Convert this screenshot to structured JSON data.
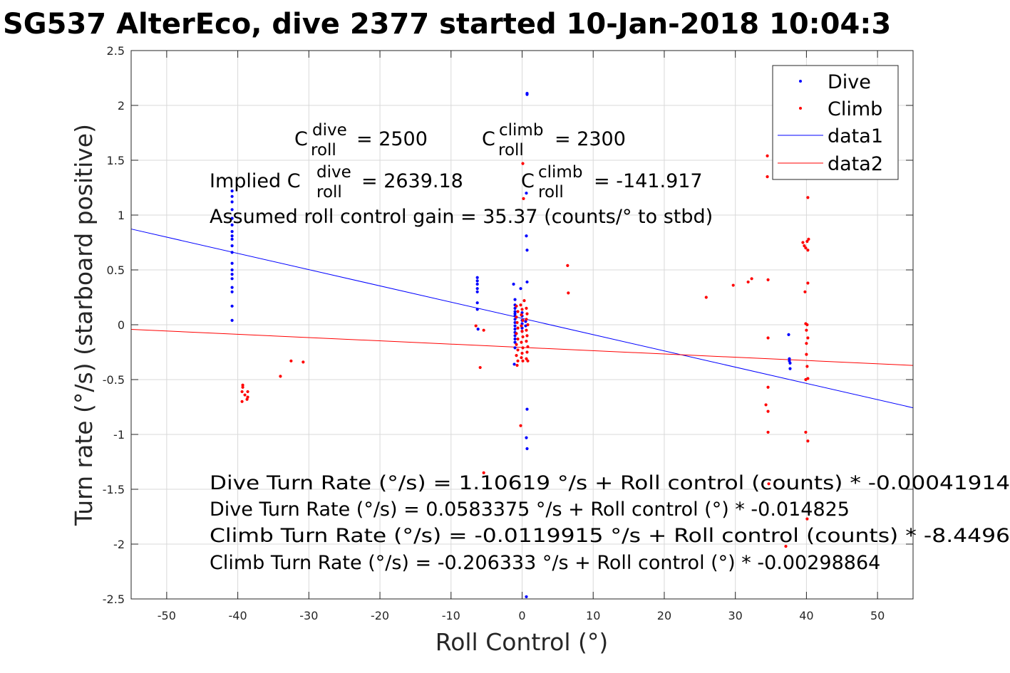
{
  "chart_data": {
    "type": "scatter",
    "title": "SG537 AlterEco, dive 2377 started 10-Jan-2018 10:04:3",
    "xlabel": "Roll Control (°)",
    "ylabel": "Turn rate (°/s) (starboard positive)",
    "xlim": [
      -55,
      55
    ],
    "ylim": [
      -2.5,
      2.5
    ],
    "xticks": [
      -50,
      -40,
      -30,
      -20,
      -10,
      0,
      10,
      20,
      30,
      40,
      50
    ],
    "yticks": [
      -2.5,
      -2,
      -1.5,
      -1,
      -0.5,
      0,
      0.5,
      1,
      1.5,
      2,
      2.5
    ],
    "grid": true,
    "legend_position": "top-right",
    "series": [
      {
        "name": "Dive",
        "kind": "points",
        "color": "#0000ff",
        "points": [
          [
            -40.8,
            1.22
          ],
          [
            -40.8,
            1.17
          ],
          [
            -40.8,
            1.12
          ],
          [
            -40.8,
            1.05
          ],
          [
            -40.8,
            0.97
          ],
          [
            -40.8,
            0.91
          ],
          [
            -40.8,
            0.85
          ],
          [
            -40.8,
            0.81
          ],
          [
            -40.8,
            0.78
          ],
          [
            -40.8,
            0.72
          ],
          [
            -40.8,
            0.66
          ],
          [
            -40.8,
            0.56
          ],
          [
            -40.8,
            0.5
          ],
          [
            -40.8,
            0.46
          ],
          [
            -40.8,
            0.42
          ],
          [
            -40.8,
            0.34
          ],
          [
            -40.8,
            0.3
          ],
          [
            -40.8,
            0.17
          ],
          [
            -40.8,
            0.04
          ],
          [
            -6.3,
            0.43
          ],
          [
            -6.3,
            0.4
          ],
          [
            -6.3,
            0.37
          ],
          [
            -6.3,
            0.33
          ],
          [
            -6.3,
            0.3
          ],
          [
            -6.3,
            0.2
          ],
          [
            -6.3,
            0.14
          ],
          [
            -6.2,
            -0.04
          ],
          [
            -1.2,
            0.37
          ],
          [
            -1.0,
            0.23
          ],
          [
            -1.0,
            0.18
          ],
          [
            -1.0,
            0.15
          ],
          [
            -1.0,
            0.12
          ],
          [
            -1.0,
            0.1
          ],
          [
            -1.0,
            0.08
          ],
          [
            -1.0,
            0.05
          ],
          [
            -1.0,
            0.02
          ],
          [
            -1.0,
            -0.01
          ],
          [
            -1.0,
            -0.04
          ],
          [
            -1.0,
            -0.07
          ],
          [
            -1.0,
            -0.1
          ],
          [
            -1.0,
            -0.13
          ],
          [
            -1.0,
            -0.16
          ],
          [
            -1.0,
            -0.21
          ],
          [
            -1.1,
            -0.36
          ],
          [
            -0.2,
            0.33
          ],
          [
            0.0,
            0.11
          ],
          [
            0.0,
            0.08
          ],
          [
            0.0,
            0.04
          ],
          [
            0.0,
            0.01
          ],
          [
            0.0,
            -0.03
          ],
          [
            0.0,
            -0.06
          ],
          [
            0.7,
            2.11
          ],
          [
            0.7,
            2.1
          ],
          [
            0.6,
            1.2
          ],
          [
            0.6,
            0.81
          ],
          [
            0.7,
            0.68
          ],
          [
            0.7,
            0.39
          ],
          [
            0.5,
            0.03
          ],
          [
            0.5,
            -0.01
          ],
          [
            0.7,
            -0.77
          ],
          [
            0.6,
            -1.03
          ],
          [
            0.7,
            -1.13
          ],
          [
            0.6,
            -2.48
          ],
          [
            37.5,
            -0.09
          ],
          [
            37.6,
            -0.31
          ],
          [
            37.6,
            -0.33
          ],
          [
            37.7,
            -0.35
          ],
          [
            37.7,
            -0.4
          ]
        ]
      },
      {
        "name": "Climb",
        "kind": "points",
        "color": "#ff0000",
        "points": [
          [
            -39.3,
            -0.55
          ],
          [
            -39.3,
            -0.57
          ],
          [
            -39.4,
            -0.61
          ],
          [
            -39.0,
            -0.64
          ],
          [
            -38.6,
            -0.61
          ],
          [
            -39.4,
            -0.7
          ],
          [
            -38.7,
            -0.68
          ],
          [
            -38.6,
            -0.66
          ],
          [
            -34.0,
            -0.47
          ],
          [
            -32.5,
            -0.33
          ],
          [
            -30.8,
            -0.34
          ],
          [
            -6.5,
            -0.01
          ],
          [
            -5.4,
            -0.05
          ],
          [
            -5.9,
            -0.39
          ],
          [
            -5.4,
            -1.35
          ],
          [
            -0.8,
            0.17
          ],
          [
            -0.6,
            0.12
          ],
          [
            -0.8,
            0.07
          ],
          [
            -0.7,
            0.02
          ],
          [
            -0.6,
            -0.03
          ],
          [
            -0.8,
            -0.08
          ],
          [
            -0.6,
            -0.13
          ],
          [
            -0.8,
            -0.18
          ],
          [
            -0.6,
            -0.23
          ],
          [
            -0.8,
            -0.28
          ],
          [
            -0.6,
            -0.33
          ],
          [
            -0.7,
            -0.37
          ],
          [
            -0.2,
            0.18
          ],
          [
            0.0,
            0.14
          ],
          [
            -0.1,
            0.09
          ],
          [
            0.1,
            0.04
          ],
          [
            -0.1,
            -0.01
          ],
          [
            0.0,
            -0.06
          ],
          [
            0.1,
            -0.11
          ],
          [
            -0.1,
            -0.16
          ],
          [
            0.1,
            -0.21
          ],
          [
            0.0,
            -0.26
          ],
          [
            -0.1,
            -0.3
          ],
          [
            0.1,
            -0.33
          ],
          [
            0.3,
            0.22
          ],
          [
            0.6,
            0.15
          ],
          [
            0.7,
            0.1
          ],
          [
            0.6,
            0.05
          ],
          [
            0.8,
            0.0
          ],
          [
            0.6,
            -0.05
          ],
          [
            0.7,
            -0.1
          ],
          [
            0.6,
            -0.15
          ],
          [
            0.8,
            -0.2
          ],
          [
            0.7,
            -0.25
          ],
          [
            0.6,
            -0.31
          ],
          [
            0.8,
            -0.33
          ],
          [
            0.1,
            1.47
          ],
          [
            0.2,
            1.15
          ],
          [
            -0.2,
            -0.92
          ],
          [
            6.4,
            0.54
          ],
          [
            6.5,
            0.29
          ],
          [
            25.9,
            0.25
          ],
          [
            29.7,
            0.36
          ],
          [
            31.8,
            0.39
          ],
          [
            32.3,
            0.42
          ],
          [
            34.5,
            1.54
          ],
          [
            34.5,
            1.35
          ],
          [
            34.6,
            0.41
          ],
          [
            34.6,
            -0.12
          ],
          [
            34.6,
            -0.57
          ],
          [
            34.3,
            -0.73
          ],
          [
            34.6,
            -0.79
          ],
          [
            34.6,
            -0.98
          ],
          [
            34.7,
            -1.45
          ],
          [
            37.1,
            -2.02
          ],
          [
            39.5,
            0.75
          ],
          [
            39.7,
            0.72
          ],
          [
            39.9,
            0.7
          ],
          [
            40.2,
            0.68
          ],
          [
            40.1,
            0.76
          ],
          [
            40.3,
            0.78
          ],
          [
            40.2,
            1.16
          ],
          [
            39.8,
            0.3
          ],
          [
            40.2,
            0.38
          ],
          [
            39.9,
            0.01
          ],
          [
            40.1,
            0.0
          ],
          [
            40.0,
            -0.05
          ],
          [
            40.2,
            -0.12
          ],
          [
            40.0,
            -0.17
          ],
          [
            40.0,
            -0.27
          ],
          [
            40.1,
            -0.38
          ],
          [
            39.9,
            -0.5
          ],
          [
            40.2,
            -0.49
          ],
          [
            39.9,
            -0.98
          ],
          [
            40.2,
            -1.06
          ],
          [
            40.1,
            -1.77
          ]
        ]
      },
      {
        "name": "data1",
        "kind": "line",
        "color": "#0000ff",
        "points": [
          [
            -55,
            0.873
          ],
          [
            55,
            -0.757
          ]
        ]
      },
      {
        "name": "data2",
        "kind": "line",
        "color": "#ff0000",
        "points": [
          [
            -55,
            -0.042
          ],
          [
            55,
            -0.371
          ]
        ]
      }
    ],
    "annotations": {
      "c_roll_dive_prefix": "C",
      "c_roll_dive_sup": "dive",
      "c_roll_dive_sub": "roll",
      "c_roll_dive_value": "= 2500",
      "c_roll_climb_prefix": "C",
      "c_roll_climb_sup": "climb",
      "c_roll_climb_sub": "roll",
      "c_roll_climb_value": "= 2300",
      "implied_prefix": "Implied C",
      "implied_dive_sup": "dive",
      "implied_dive_sub": "roll",
      "implied_dive_value": "= 2639.18",
      "implied_climb_prefix": "C",
      "implied_climb_sup": "climb",
      "implied_climb_sub": "roll",
      "implied_climb_value": "= -141.917",
      "gain_line": "Assumed roll control gain = 35.37 (counts/° to stbd)",
      "fit_lines": [
        "Dive Turn Rate (°/s) = 1.10619 °/s + Roll control (counts) * -0.00041914",
        "Dive Turn Rate (°/s) = 0.0583375 °/s + Roll control (°) * -0.014825",
        "Climb Turn Rate (°/s) = -0.0119915 °/s + Roll control (counts) * -8.4496",
        "Climb Turn Rate (°/s) = -0.206333 °/s + Roll control (°) * -0.00298864"
      ]
    }
  }
}
